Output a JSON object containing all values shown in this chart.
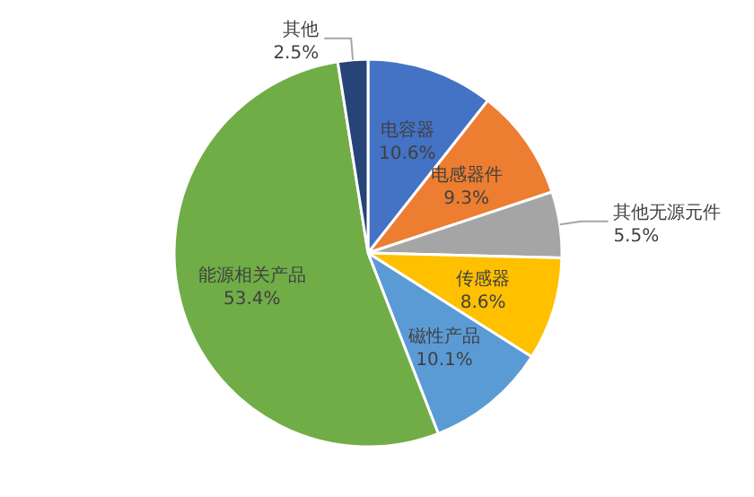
{
  "chart_data": {
    "type": "pie",
    "categories": [
      "电容器",
      "电感器件",
      "其他无源元件",
      "传感器",
      "磁性产品",
      "能源相关产品",
      "其他"
    ],
    "values": [
      10.6,
      9.3,
      5.5,
      8.6,
      10.1,
      53.4,
      2.5
    ],
    "colors": [
      "#4472c4",
      "#ed7d31",
      "#a5a5a5",
      "#ffc000",
      "#5b9bd5",
      "#70ad47",
      "#264478"
    ],
    "value_labels": [
      "10.6%",
      "9.3%",
      "5.5%",
      "8.6%",
      "10.1%",
      "53.4%",
      "2.5%"
    ]
  }
}
